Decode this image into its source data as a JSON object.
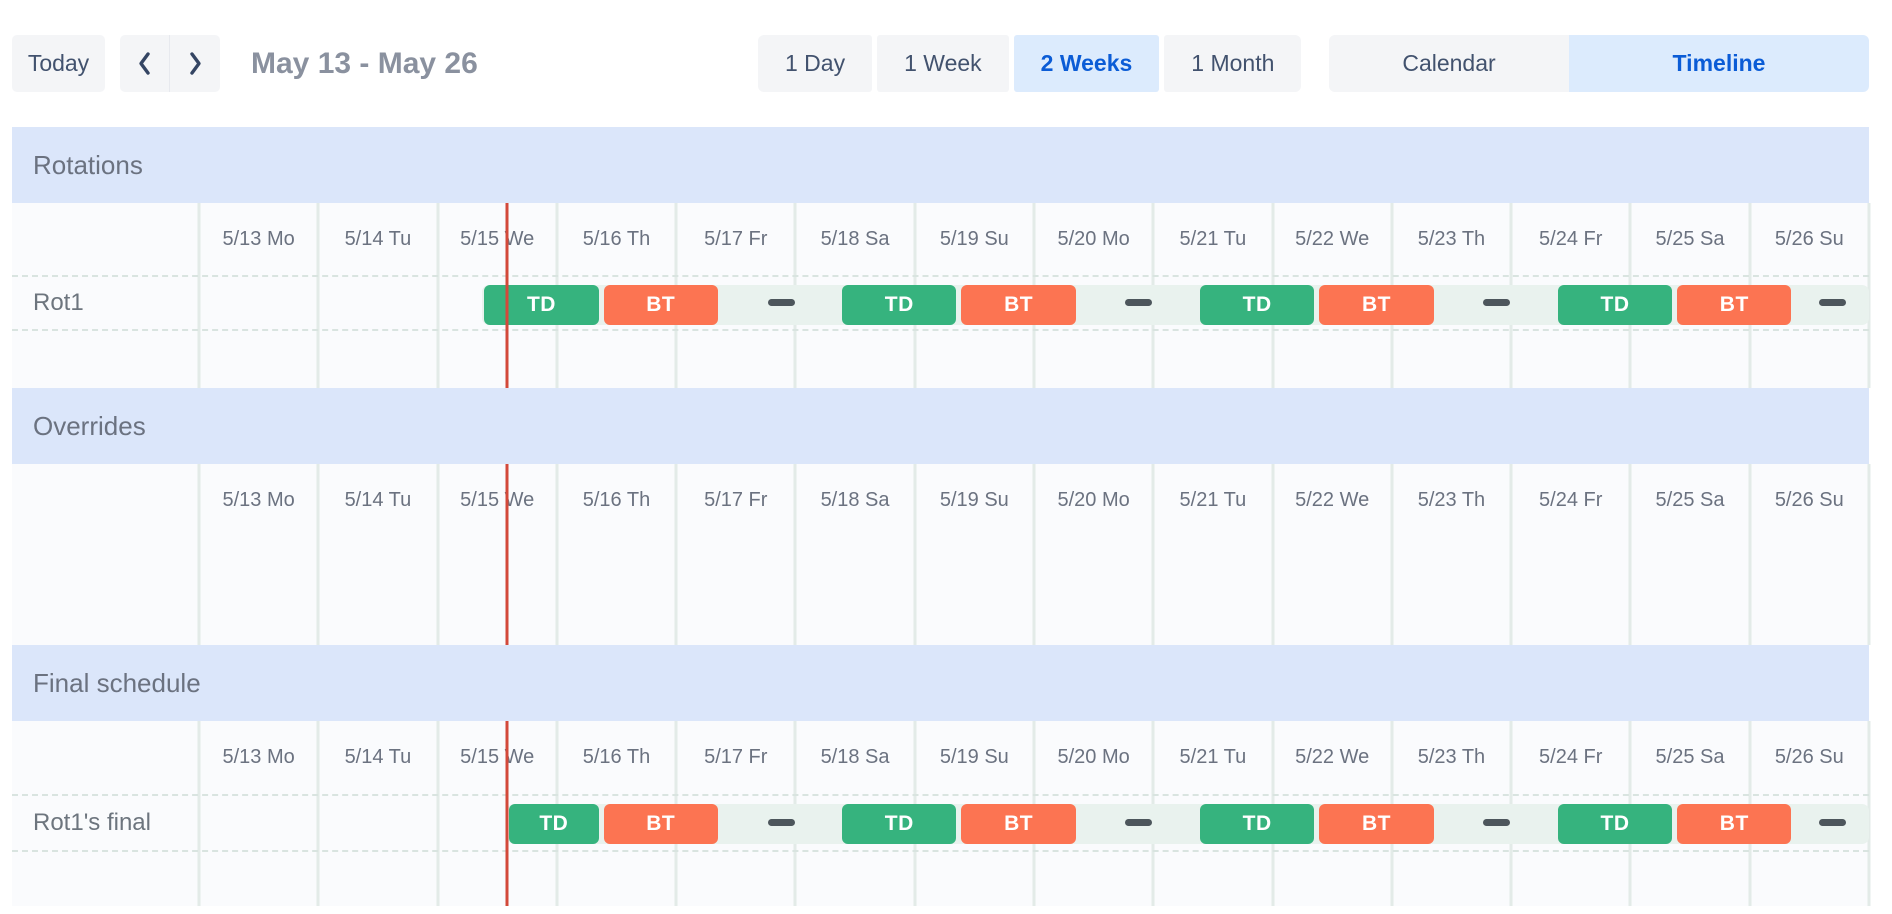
{
  "toolbar": {
    "today_label": "Today",
    "prev_icon": "chevron-left",
    "next_icon": "chevron-right",
    "title": "May 13 - May 26",
    "view_options": [
      {
        "label": "1 Day",
        "active": false
      },
      {
        "label": "1 Week",
        "active": false
      },
      {
        "label": "2 Weeks",
        "active": true
      },
      {
        "label": "1 Month",
        "active": false
      }
    ],
    "mode_options": [
      {
        "label": "Calendar",
        "active": false
      },
      {
        "label": "Timeline",
        "active": true
      }
    ]
  },
  "colors": {
    "shift_td": "#36b37e",
    "shift_bt": "#fc7452",
    "track": "#e9f2ee",
    "gap_dash": "#4d565c",
    "now_line": "#d3493a",
    "band_bg": "#dbe6fa",
    "active_bg": "#dcebfd",
    "active_text": "#0b5cd6"
  },
  "timeline": {
    "num_days": 14,
    "now_day": 2.583,
    "days": [
      "5/13 Mo",
      "5/14 Tu",
      "5/15 We",
      "5/16 Th",
      "5/17 Fr",
      "5/18 Sa",
      "5/19 Su",
      "5/20 Mo",
      "5/21 Tu",
      "5/22 We",
      "5/23 Th",
      "5/24 Fr",
      "5/25 Sa",
      "5/26 Su"
    ],
    "sections": [
      {
        "key": "rotations",
        "title": "Rotations",
        "rows": [
          {
            "label": "Rot1",
            "track_start": 2.375,
            "segments": [
              {
                "label": "TD",
                "kind": "td",
                "start": 2.375,
                "end": 3.375
              },
              {
                "label": "BT",
                "kind": "bt",
                "start": 3.375,
                "end": 4.375
              },
              {
                "label": "TD",
                "kind": "td",
                "start": 5.375,
                "end": 6.375
              },
              {
                "label": "BT",
                "kind": "bt",
                "start": 6.375,
                "end": 7.375
              },
              {
                "label": "TD",
                "kind": "td",
                "start": 8.375,
                "end": 9.375
              },
              {
                "label": "BT",
                "kind": "bt",
                "start": 9.375,
                "end": 10.375
              },
              {
                "label": "TD",
                "kind": "td",
                "start": 11.375,
                "end": 12.375
              },
              {
                "label": "BT",
                "kind": "bt",
                "start": 12.375,
                "end": 13.375
              }
            ],
            "gap_dashes": [
              4.875,
              7.875,
              10.875,
              13.69
            ]
          }
        ]
      },
      {
        "key": "overrides",
        "title": "Overrides",
        "rows": []
      },
      {
        "key": "final",
        "title": "Final schedule",
        "rows": [
          {
            "label": "Rot1's final",
            "track_start": 2.583,
            "segments": [
              {
                "label": "TD",
                "kind": "td",
                "start": 2.583,
                "end": 3.375
              },
              {
                "label": "BT",
                "kind": "bt",
                "start": 3.375,
                "end": 4.375
              },
              {
                "label": "TD",
                "kind": "td",
                "start": 5.375,
                "end": 6.375
              },
              {
                "label": "BT",
                "kind": "bt",
                "start": 6.375,
                "end": 7.375
              },
              {
                "label": "TD",
                "kind": "td",
                "start": 8.375,
                "end": 9.375
              },
              {
                "label": "BT",
                "kind": "bt",
                "start": 9.375,
                "end": 10.375
              },
              {
                "label": "TD",
                "kind": "td",
                "start": 11.375,
                "end": 12.375
              },
              {
                "label": "BT",
                "kind": "bt",
                "start": 12.375,
                "end": 13.375
              }
            ],
            "gap_dashes": [
              4.875,
              7.875,
              10.875,
              13.69
            ]
          }
        ]
      }
    ]
  }
}
